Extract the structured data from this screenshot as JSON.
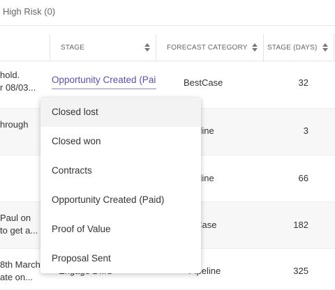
{
  "tabs": {
    "high_risk_label": "High Risk (0)"
  },
  "columns": {
    "stage": "STAGE",
    "forecast_category": "FORECAST CATEGORY",
    "stage_days": "STAGE (DAYS)"
  },
  "rows": [
    {
      "note_line1": "hold.",
      "note_line2": "r 08/03...",
      "stage": "Opportunity Created (Paid)",
      "forecast": "BestCase",
      "stage_days": "32"
    },
    {
      "note_line1": "hrough",
      "note_line2": "",
      "forecast": "peline",
      "stage_days": "3"
    },
    {
      "note_line1": "",
      "note_line2": "",
      "forecast": "peline",
      "stage_days": "66"
    },
    {
      "note_line1": "Paul on",
      "note_line2": "to get a...",
      "forecast": "stCase",
      "stage_days": "182"
    },
    {
      "note_line1": "8th March",
      "note_line2": "ate on...",
      "product": "Engage DMS",
      "forecast": "Pipeline",
      "stage_days": "325"
    }
  ],
  "stage_dropdown": {
    "options": [
      "Closed lost",
      "Closed won",
      "Contracts",
      "Opportunity Created (Paid)",
      "Proof of Value",
      "Proposal Sent"
    ],
    "hovered_index": 0
  }
}
